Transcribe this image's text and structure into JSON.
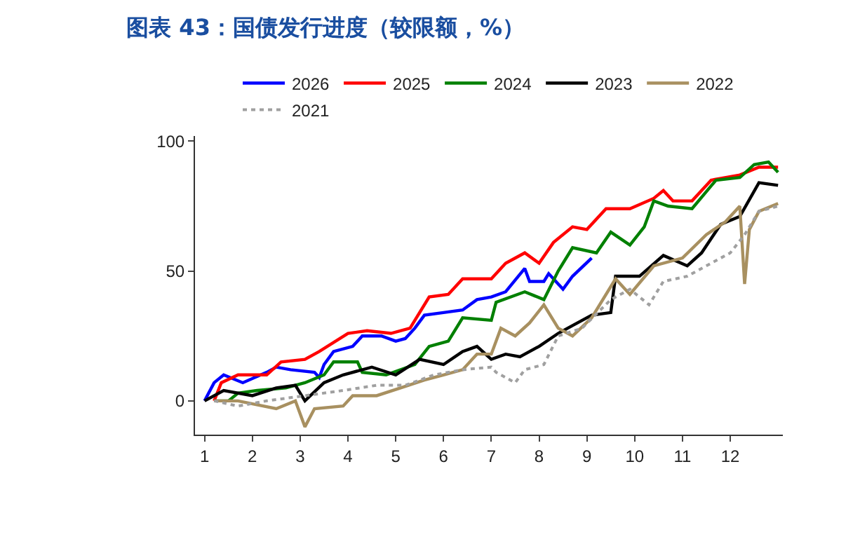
{
  "chart_data": {
    "type": "line",
    "title": "图表 43：国债发行进度（较限额，%）",
    "legend": "top",
    "grid": false,
    "xlim": [
      0.8,
      13.1
    ],
    "xticks": [
      1,
      2,
      3,
      4,
      5,
      6,
      7,
      8,
      9,
      10,
      11,
      12
    ],
    "ylim": [
      -13,
      102
    ],
    "yticks": [
      0,
      50,
      100
    ],
    "series": [
      {
        "name": "2026",
        "color": "#0000ff",
        "x": [
          1,
          1.2,
          1.4,
          1.8,
          2.3,
          2.5,
          2.8,
          3.3,
          3.4,
          3.5,
          3.7,
          4.1,
          4.3,
          4.7,
          5.0,
          5.2,
          5.4,
          5.6,
          6.0,
          6.4,
          6.7,
          7.0,
          7.3,
          7.7,
          7.8,
          8.1,
          8.2,
          8.5,
          8.7,
          9.1
        ],
        "values": [
          0,
          7,
          10,
          7,
          11,
          13,
          12,
          11,
          9,
          14,
          19,
          21,
          25,
          25,
          23,
          24,
          28,
          33,
          34,
          35,
          39,
          40,
          42,
          51,
          46,
          46,
          49,
          43,
          48,
          55
        ]
      },
      {
        "name": "2025",
        "color": "#ff0000",
        "x": [
          1.2,
          1.35,
          1.7,
          2.3,
          2.6,
          3.1,
          3.4,
          4.0,
          4.4,
          4.9,
          5.3,
          5.7,
          6.1,
          6.4,
          7.0,
          7.3,
          7.7,
          8.0,
          8.3,
          8.7,
          9.0,
          9.4,
          9.9,
          10.4,
          10.6,
          10.8,
          11.2,
          11.6,
          12.2,
          12.6,
          13.0
        ],
        "values": [
          0,
          7,
          10,
          10,
          15,
          16,
          19,
          26,
          27,
          26,
          28,
          40,
          41,
          47,
          47,
          53,
          57,
          53,
          61,
          67,
          66,
          74,
          74,
          78,
          81,
          77,
          77,
          85,
          87,
          90,
          90
        ]
      },
      {
        "name": "2024",
        "color": "#008000",
        "x": [
          1.2,
          1.5,
          1.7,
          2.1,
          2.7,
          3.1,
          3.5,
          3.7,
          4.2,
          4.3,
          4.8,
          5.4,
          5.7,
          6.1,
          6.4,
          7.0,
          7.1,
          7.7,
          8.1,
          8.4,
          8.7,
          9.2,
          9.5,
          9.9,
          10.2,
          10.4,
          10.7,
          11.2,
          11.7,
          12.2,
          12.5,
          12.8,
          13.0
        ],
        "values": [
          0,
          0,
          3,
          4,
          5,
          7,
          10,
          15,
          15,
          11,
          10,
          14,
          21,
          23,
          32,
          31,
          38,
          42,
          39,
          50,
          59,
          57,
          65,
          60,
          67,
          77,
          75,
          74,
          85,
          86,
          91,
          92,
          88
        ]
      },
      {
        "name": "2023",
        "color": "#000000",
        "x": [
          1,
          1.4,
          2.0,
          2.5,
          2.9,
          3.1,
          3.5,
          3.9,
          4.5,
          5.0,
          5.5,
          6.0,
          6.4,
          6.7,
          7.0,
          7.3,
          7.6,
          8.0,
          8.4,
          8.7,
          9.1,
          9.5,
          9.6,
          10.1,
          10.6,
          11.1,
          11.4,
          11.8,
          12.2,
          12.6,
          13.0
        ],
        "values": [
          0,
          4,
          2,
          5,
          6,
          0,
          7,
          10,
          13,
          10,
          16,
          14,
          19,
          21,
          16,
          18,
          17,
          21,
          26,
          29,
          33,
          34,
          48,
          48,
          56,
          52,
          57,
          68,
          71,
          84,
          83
        ]
      },
      {
        "name": "2022",
        "color": "#a89060",
        "x": [
          1.2,
          1.7,
          2.5,
          2.9,
          3.1,
          3.3,
          3.9,
          4.1,
          4.6,
          5.1,
          5.6,
          6.0,
          6.4,
          6.7,
          7.0,
          7.2,
          7.5,
          7.8,
          8.1,
          8.4,
          8.7,
          9.1,
          9.6,
          9.9,
          10.4,
          11.0,
          11.5,
          11.9,
          12.2,
          12.3,
          12.4,
          12.6,
          13.0
        ],
        "values": [
          0,
          0,
          -3,
          0,
          -10,
          -3,
          -2,
          2,
          2,
          5,
          8,
          10,
          12,
          18,
          18,
          28,
          25,
          30,
          37,
          28,
          25,
          32,
          47,
          41,
          52,
          55,
          64,
          69,
          75,
          45,
          66,
          73,
          76
        ]
      },
      {
        "name": "2021",
        "color": "#a0a0a0",
        "line_style": "dotted",
        "x": [
          1.2,
          1.7,
          2.3,
          3.1,
          3.9,
          4.6,
          5.2,
          5.8,
          6.4,
          7.0,
          7.1,
          7.5,
          7.7,
          8.1,
          8.4,
          8.9,
          9.5,
          9.9,
          10.3,
          10.6,
          11.1,
          11.6,
          12.0,
          12.3,
          12.6,
          13.0
        ],
        "values": [
          0,
          -2,
          0,
          2,
          4,
          6,
          6,
          10,
          12,
          13,
          11,
          7,
          12,
          14,
          25,
          28,
          39,
          43,
          37,
          46,
          48,
          53,
          57,
          64,
          73,
          75
        ]
      }
    ]
  }
}
